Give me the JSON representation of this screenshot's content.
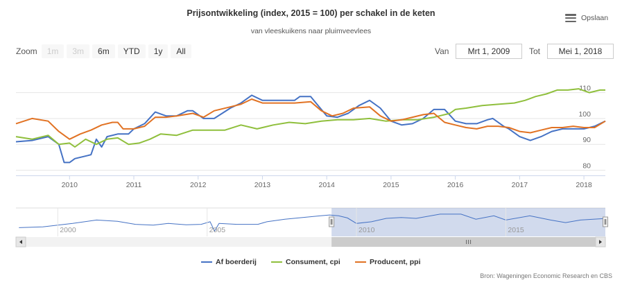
{
  "title": "Prijsontwikkeling (index, 2015 = 100) per schakel in de keten",
  "subtitle": "van vleeskuikens naar pluimveevlees",
  "menu": {
    "label": "Opslaan",
    "icon": "hamburger-icon"
  },
  "zoom": {
    "label": "Zoom",
    "buttons": [
      {
        "label": "1m",
        "disabled": true
      },
      {
        "label": "3m",
        "disabled": true
      },
      {
        "label": "6m",
        "disabled": false
      },
      {
        "label": "YTD",
        "disabled": false
      },
      {
        "label": "1y",
        "disabled": false
      },
      {
        "label": "All",
        "disabled": false
      }
    ]
  },
  "range": {
    "from_label": "Van",
    "from_value": "Mrt 1, 2009",
    "to_label": "Tot",
    "to_value": "Mei 1, 2018"
  },
  "credit": "Bron: Wageningen Economic Research en CBS",
  "chart_data": {
    "type": "line",
    "title": "Prijsontwikkeling (index, 2015 = 100) per schakel in de keten",
    "subtitle": "van vleeskuikens naar pluimveevlees",
    "x_range": [
      "2009-03",
      "2018-05"
    ],
    "y_range": [
      78,
      115
    ],
    "y_ticks": [
      80,
      90,
      100,
      110
    ],
    "x_ticks": [
      "2010",
      "2011",
      "2012",
      "2013",
      "2014",
      "2015",
      "2016",
      "2017",
      "2018"
    ],
    "grid": true,
    "legend_position": "bottom",
    "series": [
      {
        "name": "Af boerderij",
        "color": "#4572c4",
        "points": [
          [
            "2009-03",
            91
          ],
          [
            "2009-06",
            91.5
          ],
          [
            "2009-09",
            93
          ],
          [
            "2009-11",
            90
          ],
          [
            "2009-12",
            83
          ],
          [
            "2010-01",
            83
          ],
          [
            "2010-02",
            84.5
          ],
          [
            "2010-05",
            86
          ],
          [
            "2010-06",
            92
          ],
          [
            "2010-07",
            89
          ],
          [
            "2010-08",
            93
          ],
          [
            "2010-10",
            94
          ],
          [
            "2010-12",
            94
          ],
          [
            "2011-01",
            96
          ],
          [
            "2011-03",
            98
          ],
          [
            "2011-05",
            102.5
          ],
          [
            "2011-07",
            101
          ],
          [
            "2011-09",
            101
          ],
          [
            "2011-11",
            103
          ],
          [
            "2011-12",
            103
          ],
          [
            "2012-02",
            100
          ],
          [
            "2012-04",
            100
          ],
          [
            "2012-07",
            104
          ],
          [
            "2012-09",
            106
          ],
          [
            "2012-11",
            109
          ],
          [
            "2013-01",
            107
          ],
          [
            "2013-05",
            107
          ],
          [
            "2013-07",
            107
          ],
          [
            "2013-08",
            108.5
          ],
          [
            "2013-10",
            108.5
          ],
          [
            "2013-11",
            106
          ],
          [
            "2014-01",
            101
          ],
          [
            "2014-03",
            100.5
          ],
          [
            "2014-05",
            102
          ],
          [
            "2014-07",
            105
          ],
          [
            "2014-09",
            107
          ],
          [
            "2014-11",
            104
          ],
          [
            "2015-01",
            99
          ],
          [
            "2015-03",
            97.5
          ],
          [
            "2015-05",
            98
          ],
          [
            "2015-07",
            100
          ],
          [
            "2015-09",
            103.5
          ],
          [
            "2015-11",
            103.5
          ],
          [
            "2016-01",
            99
          ],
          [
            "2016-03",
            98
          ],
          [
            "2016-05",
            98
          ],
          [
            "2016-07",
            99.5
          ],
          [
            "2016-08",
            100
          ],
          [
            "2016-10",
            97
          ],
          [
            "2016-11",
            96
          ],
          [
            "2017-01",
            93
          ],
          [
            "2017-03",
            91.5
          ],
          [
            "2017-05",
            93
          ],
          [
            "2017-07",
            95
          ],
          [
            "2017-09",
            96
          ],
          [
            "2017-11",
            96
          ],
          [
            "2018-01",
            96
          ],
          [
            "2018-03",
            97
          ],
          [
            "2018-05",
            99
          ]
        ]
      },
      {
        "name": "Consument, cpi",
        "color": "#8fbf3c",
        "points": [
          [
            "2009-03",
            93
          ],
          [
            "2009-06",
            92
          ],
          [
            "2009-09",
            93.5
          ],
          [
            "2009-11",
            90
          ],
          [
            "2010-01",
            90.5
          ],
          [
            "2010-02",
            89
          ],
          [
            "2010-04",
            92
          ],
          [
            "2010-06",
            90
          ],
          [
            "2010-08",
            92
          ],
          [
            "2010-10",
            92.5
          ],
          [
            "2010-12",
            90
          ],
          [
            "2011-02",
            90.5
          ],
          [
            "2011-04",
            92
          ],
          [
            "2011-06",
            94
          ],
          [
            "2011-09",
            93.5
          ],
          [
            "2011-12",
            95.5
          ],
          [
            "2012-03",
            95.5
          ],
          [
            "2012-06",
            95.5
          ],
          [
            "2012-09",
            97.5
          ],
          [
            "2012-12",
            96
          ],
          [
            "2013-03",
            97.5
          ],
          [
            "2013-06",
            98.5
          ],
          [
            "2013-09",
            98
          ],
          [
            "2013-12",
            99
          ],
          [
            "2014-03",
            99.5
          ],
          [
            "2014-06",
            99.5
          ],
          [
            "2014-09",
            100
          ],
          [
            "2014-12",
            99
          ],
          [
            "2015-03",
            99.5
          ],
          [
            "2015-06",
            99.5
          ],
          [
            "2015-09",
            100.5
          ],
          [
            "2015-12",
            102
          ],
          [
            "2016-01",
            103.5
          ],
          [
            "2016-03",
            104
          ],
          [
            "2016-06",
            105
          ],
          [
            "2016-09",
            105.5
          ],
          [
            "2016-12",
            106
          ],
          [
            "2017-02",
            107
          ],
          [
            "2017-04",
            108.5
          ],
          [
            "2017-06",
            109.5
          ],
          [
            "2017-08",
            111
          ],
          [
            "2017-10",
            111
          ],
          [
            "2017-12",
            111.5
          ],
          [
            "2018-02",
            110
          ],
          [
            "2018-04",
            111
          ],
          [
            "2018-05",
            111
          ]
        ]
      },
      {
        "name": "Producent, ppi",
        "color": "#e17223",
        "points": [
          [
            "2009-03",
            98
          ],
          [
            "2009-06",
            100
          ],
          [
            "2009-09",
            99
          ],
          [
            "2009-11",
            95
          ],
          [
            "2010-01",
            92
          ],
          [
            "2010-03",
            94
          ],
          [
            "2010-05",
            95.5
          ],
          [
            "2010-07",
            97.5
          ],
          [
            "2010-09",
            98.5
          ],
          [
            "2010-10",
            98.5
          ],
          [
            "2010-11",
            96
          ],
          [
            "2011-01",
            96
          ],
          [
            "2011-03",
            97
          ],
          [
            "2011-05",
            100.5
          ],
          [
            "2011-07",
            100.5
          ],
          [
            "2011-09",
            101
          ],
          [
            "2011-12",
            102
          ],
          [
            "2012-02",
            100.5
          ],
          [
            "2012-04",
            103
          ],
          [
            "2012-07",
            104.5
          ],
          [
            "2012-09",
            105.5
          ],
          [
            "2012-11",
            107.5
          ],
          [
            "2013-01",
            106
          ],
          [
            "2013-04",
            106
          ],
          [
            "2013-07",
            106
          ],
          [
            "2013-10",
            106.5
          ],
          [
            "2013-12",
            103
          ],
          [
            "2014-02",
            101
          ],
          [
            "2014-04",
            102
          ],
          [
            "2014-06",
            104
          ],
          [
            "2014-09",
            104.5
          ],
          [
            "2014-11",
            101
          ],
          [
            "2015-01",
            99
          ],
          [
            "2015-03",
            99.5
          ],
          [
            "2015-05",
            100.5
          ],
          [
            "2015-07",
            101.5
          ],
          [
            "2015-09",
            102
          ],
          [
            "2015-11",
            98.5
          ],
          [
            "2016-01",
            97.5
          ],
          [
            "2016-03",
            96.5
          ],
          [
            "2016-05",
            96
          ],
          [
            "2016-07",
            97
          ],
          [
            "2016-09",
            97
          ],
          [
            "2016-11",
            96.5
          ],
          [
            "2017-01",
            95
          ],
          [
            "2017-03",
            94.5
          ],
          [
            "2017-05",
            95.5
          ],
          [
            "2017-07",
            96.5
          ],
          [
            "2017-09",
            96.5
          ],
          [
            "2017-11",
            97
          ],
          [
            "2018-01",
            96.5
          ],
          [
            "2018-03",
            96.5
          ],
          [
            "2018-05",
            99
          ]
        ]
      }
    ],
    "navigator": {
      "x_ticks": [
        "2000",
        "2005",
        "2010",
        "2015"
      ],
      "selected_range": [
        "2009-03",
        "2018-05"
      ]
    }
  }
}
